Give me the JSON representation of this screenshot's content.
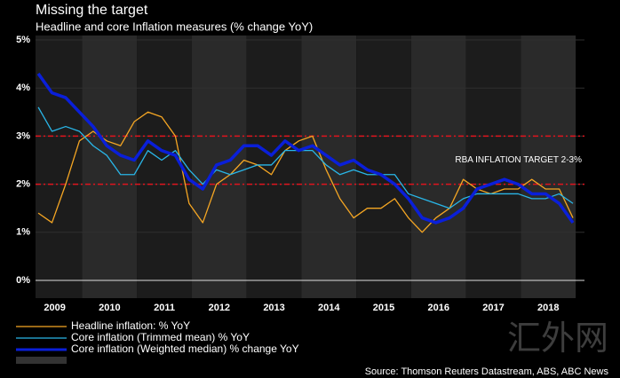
{
  "chart_data": {
    "type": "line",
    "title": "Missing the target",
    "subtitle": "Headline and core Inflation measures (% change YoY)",
    "x": [
      2009,
      2009.25,
      2009.5,
      2009.75,
      2010,
      2010.25,
      2010.5,
      2010.75,
      2011,
      2011.25,
      2011.5,
      2011.75,
      2012,
      2012.25,
      2012.5,
      2012.75,
      2013,
      2013.25,
      2013.5,
      2013.75,
      2014,
      2014.25,
      2014.5,
      2014.75,
      2015,
      2015.25,
      2015.5,
      2015.75,
      2016,
      2016.25,
      2016.5,
      2016.75,
      2017,
      2017.25,
      2017.5,
      2017.75,
      2018,
      2018.25,
      2018.5,
      2018.75
    ],
    "xlim": [
      2008.95,
      2018.96
    ],
    "xticks": [
      2009,
      2010,
      2011,
      2012,
      2013,
      2014,
      2015,
      2016,
      2017,
      2018
    ],
    "ylim": [
      0,
      5
    ],
    "yticks": [
      {
        "value": 0,
        "label": "0%"
      },
      {
        "value": 1,
        "label": "1%"
      },
      {
        "value": 2,
        "label": "2%"
      },
      {
        "value": 3,
        "label": "3%"
      },
      {
        "value": 4,
        "label": "4%"
      },
      {
        "value": 5,
        "label": "5%"
      }
    ],
    "series": [
      {
        "name": "Headline inflation: % YoY",
        "color": "#f5a623",
        "width": 1.3,
        "values": [
          1.4,
          1.2,
          2.0,
          2.9,
          3.1,
          2.9,
          2.8,
          3.3,
          3.5,
          3.4,
          3.0,
          1.6,
          1.2,
          2.0,
          2.2,
          2.5,
          2.4,
          2.2,
          2.7,
          2.9,
          3.0,
          2.3,
          1.7,
          1.3,
          1.5,
          1.5,
          1.7,
          1.3,
          1.0,
          1.3,
          1.5,
          2.1,
          1.9,
          1.8,
          1.9,
          1.9,
          2.1,
          1.9,
          1.9,
          1.3
        ]
      },
      {
        "name": "Core inflation (Trimmed mean) % YoY",
        "color": "#29b6e8",
        "width": 1.3,
        "values": [
          3.6,
          3.1,
          3.2,
          3.1,
          2.8,
          2.6,
          2.2,
          2.2,
          2.7,
          2.5,
          2.7,
          2.3,
          2.0,
          2.3,
          2.2,
          2.3,
          2.4,
          2.4,
          2.7,
          2.7,
          2.7,
          2.4,
          2.2,
          2.3,
          2.2,
          2.2,
          2.2,
          1.8,
          1.7,
          1.6,
          1.5,
          1.7,
          1.8,
          1.8,
          1.8,
          1.8,
          1.7,
          1.7,
          1.8,
          1.6
        ]
      },
      {
        "name": "Core inflation (Weighted median) % change YoY",
        "color": "#0a1fd9",
        "width": 3.5,
        "values": [
          4.3,
          3.9,
          3.8,
          3.5,
          3.2,
          2.8,
          2.6,
          2.5,
          2.9,
          2.7,
          2.6,
          2.1,
          1.9,
          2.4,
          2.5,
          2.8,
          2.8,
          2.6,
          2.9,
          2.7,
          2.8,
          2.6,
          2.4,
          2.5,
          2.3,
          2.2,
          2.0,
          1.7,
          1.3,
          1.2,
          1.3,
          1.5,
          1.9,
          2.0,
          2.1,
          2.0,
          1.8,
          1.8,
          1.6,
          1.2
        ]
      }
    ],
    "reference_lines": [
      2,
      3
    ],
    "reference_color": "#e0141e",
    "annotation": "RBA INFLATION TARGET 2-3%",
    "source": "Source: Thomson Reuters Datastream, ABS, ABC News",
    "watermark": "汇外网"
  }
}
